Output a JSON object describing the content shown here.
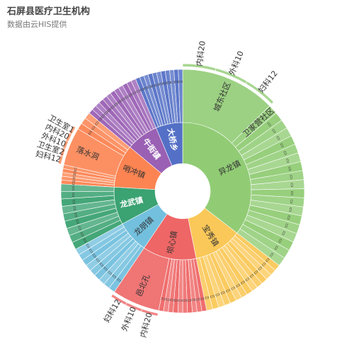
{
  "title": "石屏县医疗卫生机构",
  "subtitle": "数据由云HIS提供",
  "chart_data": {
    "type": "sunburst",
    "center": {
      "label": ""
    },
    "towns": [
      {
        "name": "异龙镇",
        "value": 28,
        "color": "#91cc75"
      },
      {
        "name": "宝秀镇",
        "value": 9,
        "color": "#fac858"
      },
      {
        "name": "坝心镇",
        "value": 10,
        "color": "#ee6666"
      },
      {
        "name": "龙朋镇",
        "value": 6,
        "color": "#73c0de"
      },
      {
        "name": "龙武镇",
        "value": 7,
        "color": "#3ba272"
      },
      {
        "name": "哨冲镇",
        "value": 8,
        "color": "#fc8452"
      },
      {
        "name": "牛街镇",
        "value": 6,
        "color": "#9a60b4"
      },
      {
        "name": "大桥乡",
        "value": 5,
        "color": "#5470c6"
      }
    ],
    "units": [
      {
        "town": "异龙镇",
        "name": "城东社区",
        "value": 10,
        "children": [
          "内科20",
          "外科10",
          "妇科12"
        ]
      },
      {
        "town": "异龙镇",
        "name": "卫家营社区",
        "value": 1
      },
      {
        "town": "异龙镇",
        "name": "",
        "value": 17,
        "count": 18
      },
      {
        "town": "宝秀镇",
        "name": "",
        "value": 9,
        "count": 14
      },
      {
        "town": "坝心镇",
        "name": "",
        "value": 5,
        "count": 10
      },
      {
        "town": "坝心镇",
        "name": "邑北孔",
        "value": 5,
        "children": [
          "内科20",
          "外科10",
          "妇科12"
        ]
      },
      {
        "town": "龙朋镇",
        "name": "",
        "value": 6,
        "count": 9
      },
      {
        "town": "龙武镇",
        "name": "",
        "value": 7,
        "count": 9
      },
      {
        "town": "哨冲镇",
        "name": "",
        "value": 2,
        "count": 5
      },
      {
        "town": "哨冲镇",
        "name": "落水洞",
        "value": 4,
        "children": [
          "妇科12",
          "卫生室2",
          "外科10",
          "内科20",
          "卫生室1"
        ]
      },
      {
        "town": "哨冲镇",
        "name": "",
        "value": 2,
        "count": 3
      },
      {
        "town": "牛街镇",
        "name": "",
        "value": 6,
        "count": 12
      },
      {
        "town": "大桥乡",
        "name": "",
        "value": 5,
        "count": 11
      }
    ]
  }
}
